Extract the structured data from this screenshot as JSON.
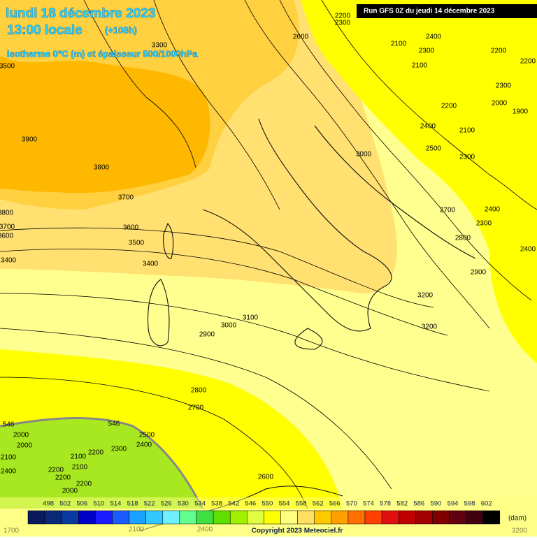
{
  "header": {
    "date": "lundi 18 décembre 2023",
    "time": "13:00 locale",
    "lead": "(+108h)",
    "field": "Isotherme 0°C (m) et épaisseur 500/1000hPa",
    "run": "Run GFS 0Z du jeudi 14 décembre 2023"
  },
  "contour_labels": [
    "2200",
    "2300",
    "2600",
    "2400",
    "2100",
    "2300",
    "2100",
    "2200",
    "2200",
    "3300",
    "3500",
    "3900",
    "3800",
    "3700",
    "3800",
    "3700",
    "3600",
    "3600",
    "3500",
    "3400",
    "3400",
    "2300",
    "2000",
    "1900",
    "2200",
    "2400",
    "2100",
    "2500",
    "3000",
    "2300",
    "2700",
    "2400",
    "2300",
    "2800",
    "2400",
    "2900",
    "3200",
    "3200",
    "3100",
    "3000",
    "2900",
    "2800",
    "2700",
    "2500",
    "2400",
    "2300",
    "2600",
    "546",
    "546",
    "2000",
    "2000",
    "2100",
    "2200",
    "2100",
    "2100",
    "2400",
    "2200",
    "2200",
    "2200",
    "2000",
    "1700",
    "2100",
    "2400",
    "3200"
  ],
  "legend": {
    "labels": [
      "498",
      "502",
      "506",
      "510",
      "514",
      "518",
      "522",
      "526",
      "530",
      "534",
      "538",
      "542",
      "546",
      "550",
      "554",
      "558",
      "562",
      "566",
      "570",
      "574",
      "578",
      "582",
      "586",
      "590",
      "594",
      "598",
      "602"
    ],
    "colors": [
      "#0a1a5a",
      "#0a2a78",
      "#0a3aa0",
      "#0000c8",
      "#1a1aff",
      "#1a5aff",
      "#1aa0ff",
      "#30c8ff",
      "#70f0ff",
      "#60ff90",
      "#40e040",
      "#60e000",
      "#a0f000",
      "#e0ff40",
      "#ffff00",
      "#ffff80",
      "#ffe060",
      "#ffc800",
      "#ffa000",
      "#ff7000",
      "#ff4000",
      "#e01010",
      "#c00000",
      "#a00000",
      "#800000",
      "#600010",
      "#400010",
      "#000000"
    ],
    "unit": "(dam)"
  },
  "copyright": "Copyright 2023 Meteociel.fr"
}
